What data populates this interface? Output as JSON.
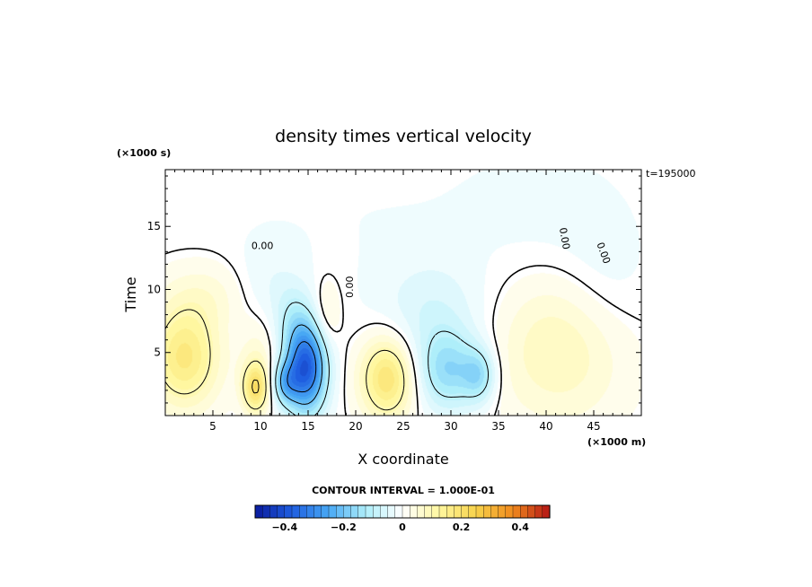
{
  "chart_data": {
    "type": "heatmap",
    "title": "density times vertical velocity",
    "xlabel": "X coordinate",
    "ylabel": "Time",
    "x_unit": "(×1000 m)",
    "y_unit": "(×1000 s)",
    "time_label": "t=195000",
    "contour_interval_label": "CONTOUR INTERVAL = 1.000E-01",
    "xlim": [
      0,
      50
    ],
    "ylim": [
      0,
      19.5
    ],
    "x_ticks": [
      5,
      10,
      15,
      20,
      25,
      30,
      35,
      40,
      45
    ],
    "y_ticks": [
      5,
      10,
      15
    ],
    "colorbar": {
      "range": [
        -0.5,
        0.5
      ],
      "ticks": [
        -0.4,
        -0.2,
        0,
        0.2,
        0.4
      ],
      "tick_labels": [
        "-0.4",
        "-0.2",
        "0",
        "0.2",
        "0.4"
      ],
      "colors": [
        "#0a1a9c",
        "#1f5ee0",
        "#48a8f4",
        "#aeeefa",
        "#ffffff",
        "#fff7a0",
        "#f7d24a",
        "#f08a1e",
        "#b41515"
      ]
    },
    "contour_labels": [
      {
        "text": "0.00",
        "x": 10.2,
        "y": 13.2,
        "rotation": 0
      },
      {
        "text": "0.00",
        "x": 19.7,
        "y": 10.2,
        "rotation": -90
      },
      {
        "text": "0.00",
        "x": 41.6,
        "y": 14.0,
        "rotation": 80
      },
      {
        "text": "0.00",
        "x": 45.7,
        "y": 12.8,
        "rotation": 70
      }
    ],
    "blobs": [
      {
        "x": 2.0,
        "y": 4.6,
        "sx": 2.6,
        "sy": 2.8,
        "v": 0.17
      },
      {
        "x": 9.5,
        "y": 2.2,
        "sx": 1.0,
        "sy": 1.4,
        "v": 0.2
      },
      {
        "x": 9.8,
        "y": 5.5,
        "sx": 1.5,
        "sy": 2.2,
        "v": 0.05
      },
      {
        "x": 14.8,
        "y": 3.8,
        "sx": 1.5,
        "sy": 2.5,
        "v": -0.38
      },
      {
        "x": 12.6,
        "y": 2.6,
        "sx": 1.0,
        "sy": 1.2,
        "v": -0.16
      },
      {
        "x": 13.4,
        "y": 7.5,
        "sx": 1.3,
        "sy": 2.0,
        "v": -0.06
      },
      {
        "x": 10.5,
        "y": 9.5,
        "sx": 2.6,
        "sy": 2.6,
        "v": -0.05
      },
      {
        "x": 17.0,
        "y": 8.0,
        "sx": 1.0,
        "sy": 2.0,
        "v": 0.06
      },
      {
        "x": 23.3,
        "y": 3.0,
        "sx": 2.0,
        "sy": 2.3,
        "v": 0.19
      },
      {
        "x": 29.8,
        "y": 3.5,
        "sx": 2.3,
        "sy": 2.2,
        "v": -0.15
      },
      {
        "x": 33.0,
        "y": 3.2,
        "sx": 1.2,
        "sy": 1.5,
        "v": -0.12
      },
      {
        "x": 28.0,
        "y": 8.0,
        "sx": 4.0,
        "sy": 3.0,
        "v": -0.06
      },
      {
        "x": 41.5,
        "y": 5.3,
        "sx": 5.0,
        "sy": 4.2,
        "v": 0.09
      },
      {
        "x": 46.0,
        "y": 10.0,
        "sx": 3.5,
        "sy": 4.0,
        "v": -0.03
      },
      {
        "x": 40.0,
        "y": 16.0,
        "sx": 6.0,
        "sy": 4.0,
        "v": -0.02
      },
      {
        "x": 20.0,
        "y": 16.0,
        "sx": 12.0,
        "sy": 5.0,
        "v": -0.012
      },
      {
        "x": 5.0,
        "y": 9.5,
        "sx": 4.0,
        "sy": 2.0,
        "v": 0.05
      }
    ]
  }
}
